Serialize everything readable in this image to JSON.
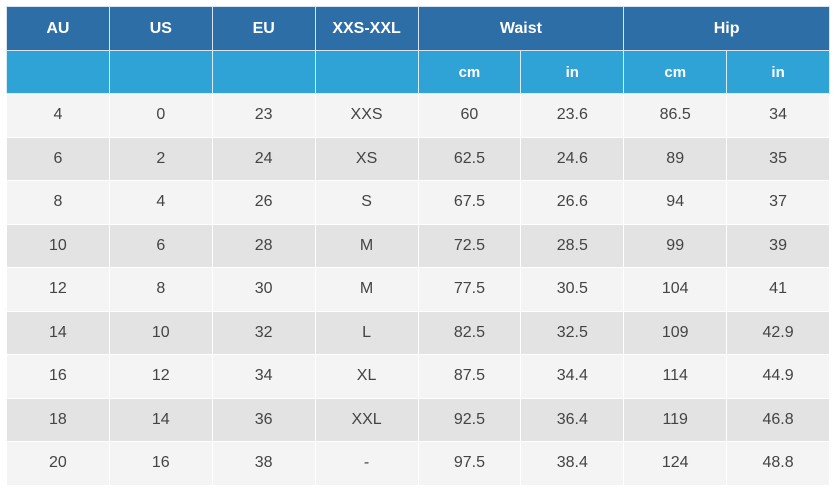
{
  "table": {
    "headers": {
      "au": "AU",
      "us": "US",
      "eu": "EU",
      "alpha": "XXS-XXL",
      "waist": "Waist",
      "hip": "Hip",
      "waist_cm": "cm",
      "waist_in": "in",
      "hip_cm": "cm",
      "hip_in": "in"
    },
    "rows": [
      [
        "4",
        "0",
        "23",
        "XXS",
        "60",
        "23.6",
        "86.5",
        "34"
      ],
      [
        "6",
        "2",
        "24",
        "XS",
        "62.5",
        "24.6",
        "89",
        "35"
      ],
      [
        "8",
        "4",
        "26",
        "S",
        "67.5",
        "26.6",
        "94",
        "37"
      ],
      [
        "10",
        "6",
        "28",
        "M",
        "72.5",
        "28.5",
        "99",
        "39"
      ],
      [
        "12",
        "8",
        "30",
        "M",
        "77.5",
        "30.5",
        "104",
        "41"
      ],
      [
        "14",
        "10",
        "32",
        "L",
        "82.5",
        "32.5",
        "109",
        "42.9"
      ],
      [
        "16",
        "12",
        "34",
        "XL",
        "87.5",
        "34.4",
        "114",
        "44.9"
      ],
      [
        "18",
        "14",
        "36",
        "XXL",
        "92.5",
        "36.4",
        "119",
        "46.8"
      ],
      [
        "20",
        "16",
        "38",
        "-",
        "97.5",
        "38.4",
        "124",
        "48.8"
      ]
    ]
  },
  "colors": {
    "header_dark": "#2e6ea6",
    "header_light": "#2fa3d6",
    "row_odd": "#f4f4f4",
    "row_even": "#e3e3e3",
    "text": "#444444"
  }
}
